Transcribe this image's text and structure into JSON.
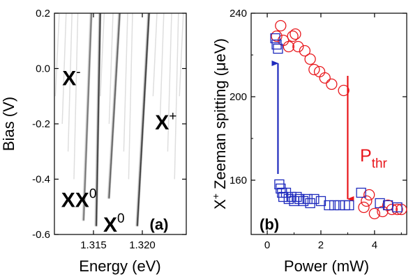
{
  "chart_data": [
    {
      "type": "heatmap",
      "panel_label": "(a)",
      "xlabel": "Energy (eV)",
      "ylabel": "Bias (V)",
      "xlim": [
        1.311,
        1.3245
      ],
      "ylim": [
        -0.6,
        0.2
      ],
      "xticks": [
        "1.315",
        "1.320"
      ],
      "yticks": [
        "0.2",
        "0.0",
        "-0.2",
        "-0.4",
        "-0.6"
      ],
      "lines": [
        {
          "name": "XX",
          "sup": "0",
          "top_energy": 1.3148,
          "bottom_energy": 1.314,
          "bottom_bias": -0.55,
          "intensity": 0.7
        },
        {
          "name": "X",
          "sup": "-",
          "top_energy": 1.3157,
          "bottom_energy": 1.3153,
          "bottom_bias": -0.57,
          "intensity": 1.0
        },
        {
          "name": "X",
          "sup": "0",
          "top_energy": 1.3177,
          "bottom_energy": 1.3166,
          "bottom_bias": -0.47,
          "intensity": 0.8
        },
        {
          "name": "X",
          "sup": "+",
          "top_energy": 1.3207,
          "bottom_energy": 1.3195,
          "bottom_bias": -0.57,
          "intensity": 1.0
        }
      ],
      "labels": [
        {
          "text": "X",
          "sup": "-",
          "energy": 1.3118,
          "bias": -0.06
        },
        {
          "text": "X",
          "sup": "+",
          "energy": 1.3213,
          "bias": -0.22
        },
        {
          "text": "XX",
          "sup": "0",
          "energy": 1.3117,
          "bias": -0.5
        },
        {
          "text": "X",
          "sup": "0",
          "energy": 1.316,
          "bias": -0.59
        }
      ]
    },
    {
      "type": "scatter",
      "panel_label": "(b)",
      "xlabel": "Power (mW)",
      "ylabel": "X+ Zeeman spitting (μeV)",
      "ylabel_parts": {
        "base": "X",
        "sup": "+",
        "rest": " Zeeman spitting (μeV)"
      },
      "xlim": [
        -0.6,
        5.2
      ],
      "ylim": [
        134,
        240
      ],
      "xticks": [
        "0",
        "2",
        "4"
      ],
      "yticks": [
        "160",
        "200",
        "240"
      ],
      "annotation": {
        "text": "P",
        "sub": "thr"
      },
      "series": [
        {
          "marker": "circle",
          "color": "#e8171c",
          "points": [
            [
              0.35,
              229
            ],
            [
              0.5,
              234
            ],
            [
              0.6,
              227
            ],
            [
              0.8,
              224
            ],
            [
              0.95,
              229
            ],
            [
              1.05,
              230
            ],
            [
              1.15,
              224
            ],
            [
              1.4,
              222
            ],
            [
              1.6,
              218
            ],
            [
              1.75,
              213
            ],
            [
              1.95,
              212
            ],
            [
              2.15,
              209
            ],
            [
              2.4,
              206
            ],
            [
              2.85,
              203
            ],
            [
              3.6,
              147
            ],
            [
              3.7,
              150
            ],
            [
              3.8,
              153
            ],
            [
              4.0,
              144
            ],
            [
              4.3,
              145
            ],
            [
              4.5,
              148
            ],
            [
              4.65,
              146
            ],
            [
              4.85,
              146
            ],
            [
              5.0,
              146
            ]
          ]
        },
        {
          "marker": "square",
          "color": "#1f2bbd",
          "points": [
            [
              0.3,
              228
            ],
            [
              0.35,
              225
            ],
            [
              0.4,
              223
            ],
            [
              0.45,
              158
            ],
            [
              0.5,
              156
            ],
            [
              0.55,
              154
            ],
            [
              0.6,
              152
            ],
            [
              0.7,
              154
            ],
            [
              0.8,
              151
            ],
            [
              0.9,
              152
            ],
            [
              1.0,
              150
            ],
            [
              1.1,
              152
            ],
            [
              1.2,
              151
            ],
            [
              1.35,
              150
            ],
            [
              1.5,
              151
            ],
            [
              1.6,
              149
            ],
            [
              1.75,
              151
            ],
            [
              2.0,
              150
            ],
            [
              2.3,
              148
            ],
            [
              2.5,
              148
            ],
            [
              2.7,
              148
            ],
            [
              2.9,
              148
            ],
            [
              3.05,
              148
            ],
            [
              3.5,
              154
            ],
            [
              4.2,
              149
            ],
            [
              4.5,
              148
            ],
            [
              4.85,
              147
            ]
          ]
        }
      ],
      "arrows": [
        {
          "color": "#1f2bbd",
          "x": 0.4,
          "from": 163,
          "to": 216
        },
        {
          "color": "#e8171c",
          "x": 3.0,
          "from": 210,
          "to": 151
        }
      ]
    }
  ]
}
